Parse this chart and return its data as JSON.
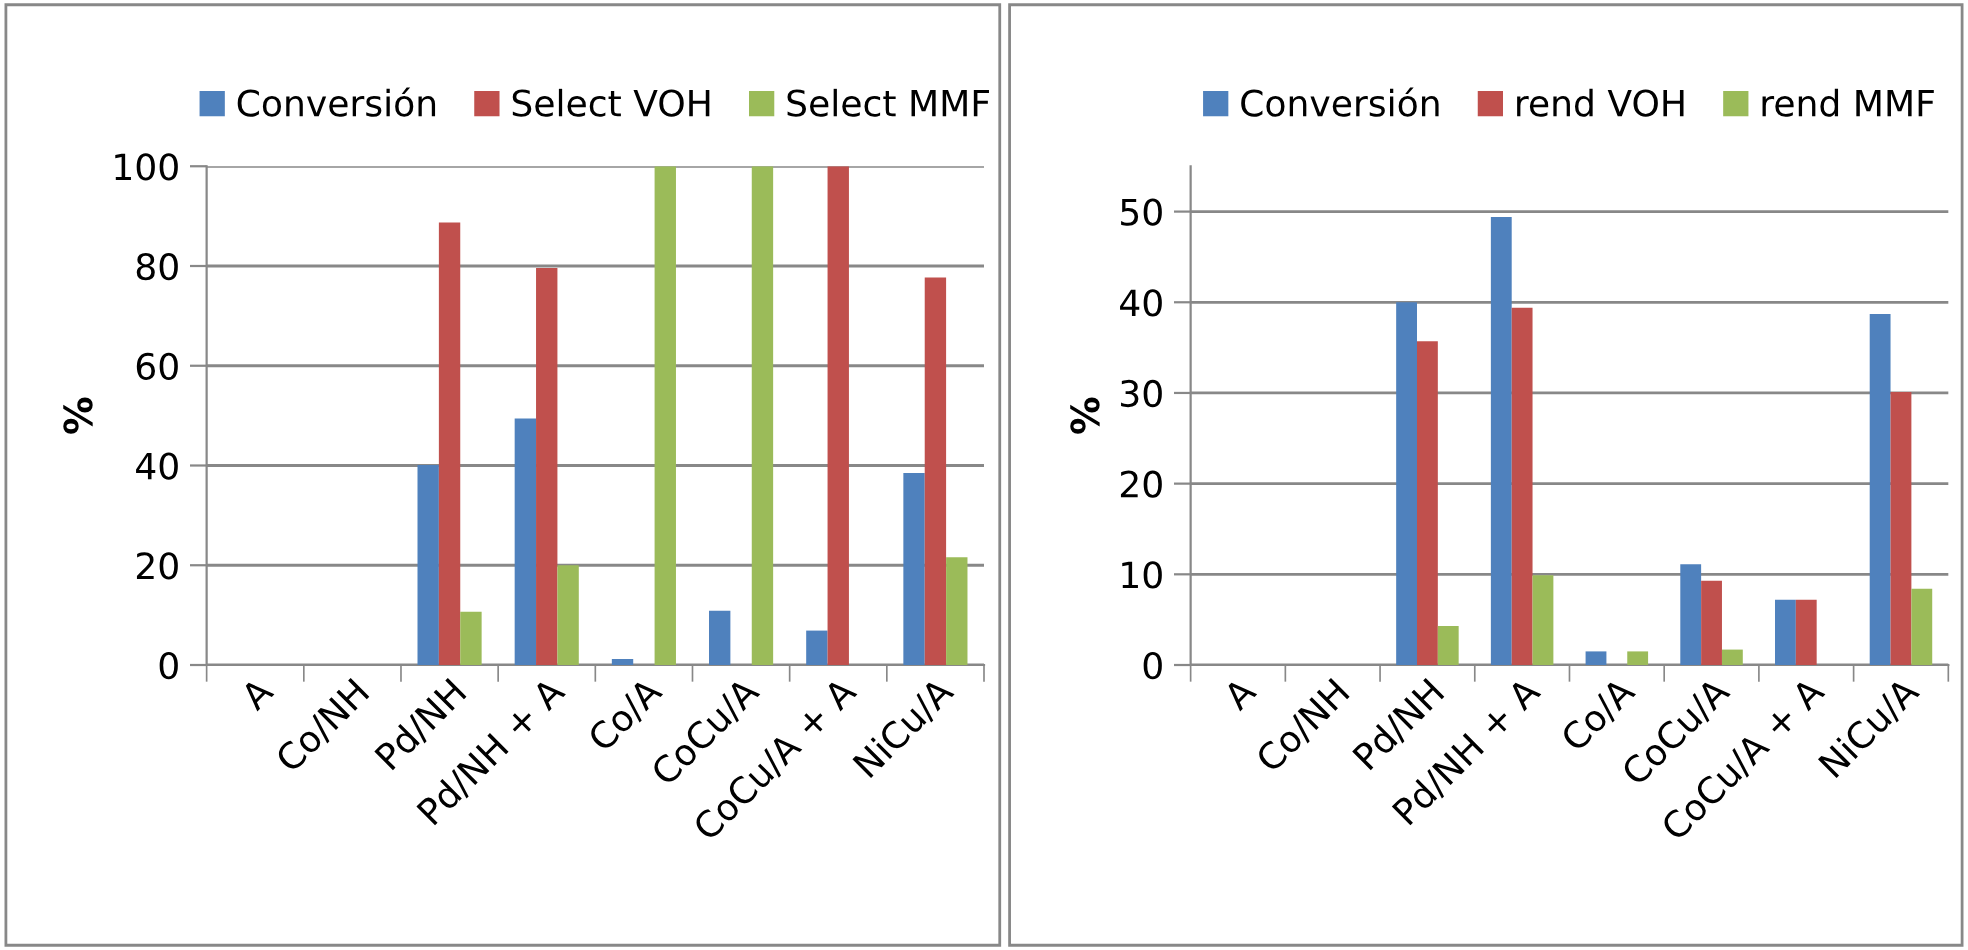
{
  "chart_data": [
    {
      "type": "bar",
      "ylabel": "%",
      "categories": [
        "A",
        "Co/NH",
        "Pd/NH",
        "Pd/NH + A",
        "Co/A",
        "CoCu/A",
        "CoCu/A + A",
        "NiCu/A"
      ],
      "ylim": [
        0,
        100
      ],
      "yticks": [
        0,
        20,
        40,
        60,
        80,
        100
      ],
      "grid": "y",
      "legend": "top",
      "series": [
        {
          "name": "Conversión",
          "color": "#4f81bd",
          "values": [
            0,
            0,
            40.1,
            49.4,
            1.2,
            10.9,
            6.9,
            38.5
          ]
        },
        {
          "name": "Select VOH",
          "color": "#c0504d",
          "values": [
            0,
            0,
            88.7,
            79.6,
            0,
            0,
            100,
            77.7
          ]
        },
        {
          "name": "Select MMF",
          "color": "#9bbb59",
          "values": [
            0,
            0,
            10.7,
            20,
            100,
            100,
            0,
            21.6
          ]
        }
      ]
    },
    {
      "type": "bar",
      "ylabel": "%",
      "categories": [
        "A",
        "Co/NH",
        "Pd/NH",
        "Pd/NH + A",
        "Co/A",
        "CoCu/A",
        "CoCu/A + A",
        "NiCu/A"
      ],
      "ylim": [
        0,
        55
      ],
      "yticks": [
        0,
        10,
        20,
        30,
        40,
        50
      ],
      "grid": "y",
      "legend": "top",
      "series": [
        {
          "name": "Conversión",
          "color": "#4f81bd",
          "values": [
            0,
            0,
            40,
            49.4,
            1.5,
            11.1,
            7.2,
            38.7
          ]
        },
        {
          "name": "rend VOH",
          "color": "#c0504d",
          "values": [
            0,
            0,
            35.7,
            39.4,
            0,
            9.3,
            7.2,
            30.1
          ]
        },
        {
          "name": "rend MMF",
          "color": "#9bbb59",
          "values": [
            0,
            0,
            4.3,
            9.9,
            1.5,
            1.7,
            0,
            8.4
          ]
        }
      ]
    }
  ]
}
